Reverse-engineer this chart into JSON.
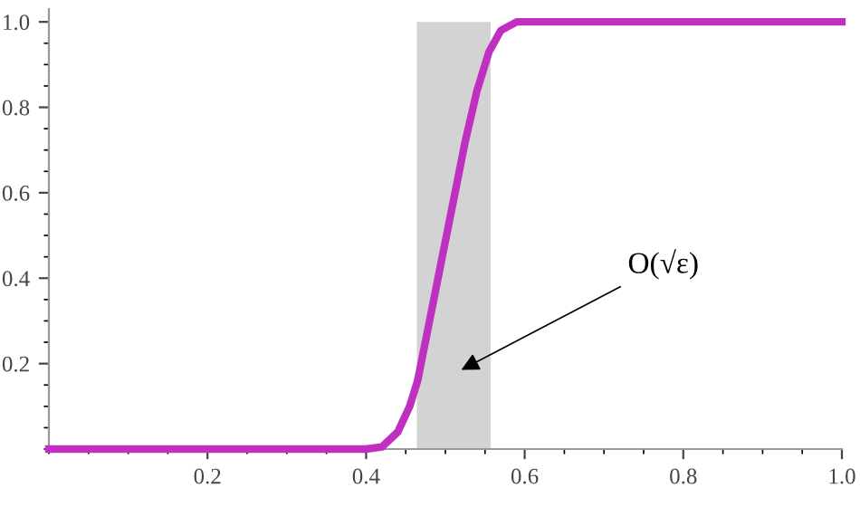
{
  "chart_data": {
    "type": "line",
    "x": [
      0,
      0.4,
      0.42,
      0.44,
      0.455,
      0.465,
      0.48,
      0.495,
      0.51,
      0.525,
      0.54,
      0.555,
      0.57,
      0.59,
      1.0
    ],
    "series": [
      {
        "color": "#c030c0",
        "values": [
          0,
          0,
          0.005,
          0.04,
          0.1,
          0.16,
          0.3,
          0.44,
          0.58,
          0.72,
          0.84,
          0.93,
          0.98,
          1.0,
          1.0
        ]
      }
    ],
    "xlim": [
      0,
      1.0
    ],
    "ylim": [
      0,
      1.03
    ],
    "xticks": [
      0.2,
      0.4,
      0.6,
      0.8,
      {
        "value": 1.0,
        "label": "1.0"
      }
    ],
    "yticks": [
      0.2,
      0.4,
      0.6,
      0.8,
      {
        "value": 1.0,
        "label": "1.0"
      }
    ],
    "bands": [
      {
        "axis": "x",
        "from": 0.464,
        "to": 0.557,
        "color": "#d3d3d3"
      }
    ],
    "annotations": [
      "O(√ε)"
    ],
    "grid": false,
    "legend": false
  }
}
